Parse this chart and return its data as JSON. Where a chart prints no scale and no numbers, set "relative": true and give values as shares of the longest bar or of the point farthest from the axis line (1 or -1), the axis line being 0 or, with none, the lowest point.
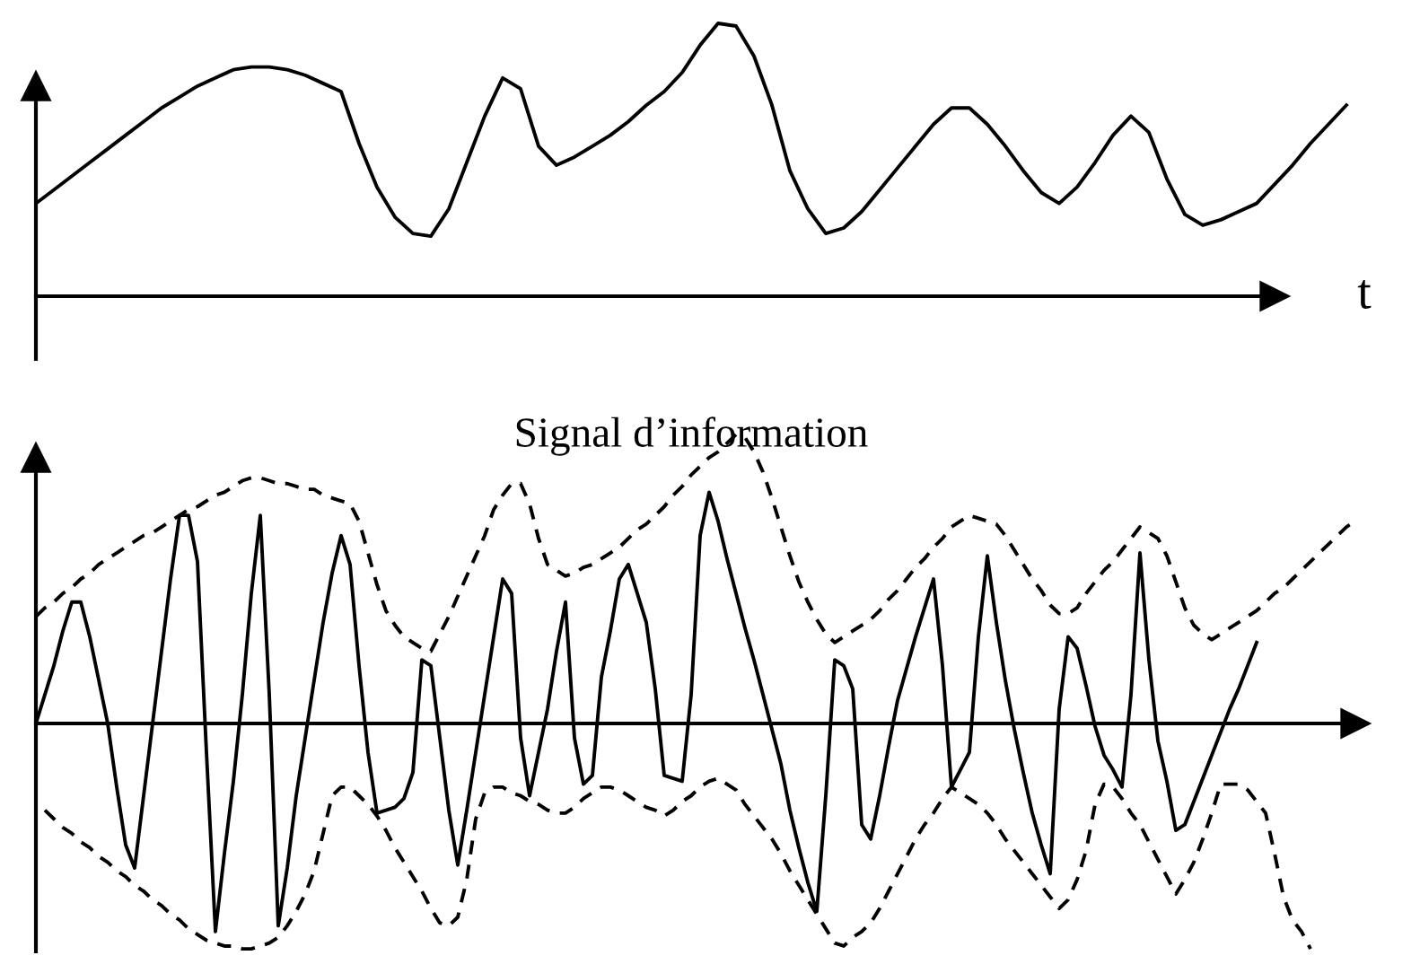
{
  "chart_data": [
    {
      "type": "line",
      "relative": true,
      "xlabel": "t",
      "annotations": [
        "Signal d’information"
      ],
      "marker": "none",
      "line_style": "solid",
      "categories": [
        null,
        null,
        null,
        null,
        null,
        null,
        null,
        null,
        null,
        null,
        null,
        null,
        null,
        null,
        null,
        null,
        null,
        null,
        null,
        null,
        null,
        null,
        null,
        null,
        null,
        null,
        null,
        null,
        null,
        null,
        null,
        null,
        null,
        null,
        null,
        null,
        null,
        null,
        null,
        null,
        null,
        null,
        null,
        null,
        null,
        null,
        null,
        null,
        null,
        null,
        null,
        null,
        null,
        null,
        null,
        null,
        null,
        null,
        null,
        null,
        null,
        null,
        null,
        null,
        null,
        null,
        null,
        null,
        null,
        null,
        null,
        null,
        null,
        null
      ],
      "series": [
        {
          "color": "#000000",
          "values": [
            0.34,
            0.39,
            0.44,
            0.49,
            0.54,
            0.59,
            0.64,
            0.69,
            0.73,
            0.77,
            0.8,
            0.83,
            0.84,
            0.84,
            0.83,
            0.81,
            0.78,
            0.75,
            0.56,
            0.4,
            0.29,
            0.23,
            0.22,
            0.32,
            0.49,
            0.66,
            0.8,
            0.76,
            0.55,
            0.48,
            0.51,
            0.55,
            0.59,
            0.64,
            0.7,
            0.75,
            0.82,
            0.92,
            1.0,
            0.99,
            0.88,
            0.7,
            0.46,
            0.32,
            0.23,
            0.25,
            0.31,
            0.39,
            0.47,
            0.55,
            0.63,
            0.69,
            0.69,
            0.63,
            0.55,
            0.46,
            0.38,
            0.34,
            0.4,
            0.49,
            0.59,
            0.66,
            0.6,
            0.43,
            0.3,
            0.26,
            0.28,
            0.31,
            0.34,
            0.41,
            0.48,
            0.56,
            0.63,
            0.7
          ]
        }
      ]
    },
    {
      "type": "line",
      "relative": true,
      "marker": "none",
      "categories": [
        null,
        null,
        null,
        null,
        null,
        null,
        null,
        null,
        null,
        null,
        null,
        null,
        null,
        null,
        null,
        null,
        null,
        null,
        null,
        null,
        null,
        null,
        null,
        null,
        null,
        null,
        null,
        null,
        null,
        null,
        null,
        null,
        null,
        null,
        null,
        null,
        null,
        null,
        null,
        null,
        null,
        null,
        null,
        null,
        null,
        null,
        null,
        null,
        null,
        null,
        null,
        null,
        null,
        null,
        null,
        null,
        null,
        null,
        null,
        null,
        null,
        null,
        null,
        null,
        null,
        null,
        null,
        null,
        null,
        null,
        null,
        null,
        null,
        null,
        null,
        null,
        null,
        null,
        null,
        null,
        null,
        null,
        null,
        null,
        null,
        null,
        null,
        null,
        null,
        null,
        null,
        null,
        null,
        null,
        null,
        null,
        null,
        null,
        null,
        null,
        null,
        null,
        null,
        null,
        null,
        null,
        null,
        null,
        null,
        null,
        null,
        null,
        null,
        null,
        null,
        null,
        null,
        null,
        null,
        null,
        null,
        null,
        null,
        null,
        null,
        null,
        null,
        null,
        null,
        null,
        null,
        null,
        null,
        null,
        null,
        null,
        null,
        null,
        null,
        null,
        null,
        null,
        null,
        null,
        null,
        null,
        null,
        null,
        null
      ],
      "series": [
        {
          "color": "#000000",
          "line_style": "solid",
          "values": [
            0,
            0.1,
            0.2,
            0.32,
            0.42,
            0.42,
            0.3,
            0.15,
            0.0,
            -0.22,
            -0.42,
            -0.5,
            -0.25,
            0.0,
            0.25,
            0.5,
            0.72,
            0.72,
            0.56,
            -0.1,
            -0.72,
            -0.45,
            -0.2,
            0.1,
            0.45,
            0.72,
            0.1,
            -0.7,
            -0.5,
            -0.25,
            -0.05,
            0.15,
            0.35,
            0.52,
            0.65,
            0.55,
            0.2,
            -0.1,
            -0.31,
            -0.3,
            -0.29,
            -0.26,
            -0.17,
            0.22,
            0.2,
            -0.05,
            -0.3,
            -0.49,
            -0.3,
            -0.1,
            0.1,
            0.3,
            0.5,
            0.45,
            -0.05,
            -0.25,
            -0.1,
            0.05,
            0.25,
            0.42,
            -0.05,
            -0.21,
            -0.18,
            0.16,
            0.32,
            0.5,
            0.55,
            0.45,
            0.35,
            0.12,
            -0.18,
            -0.19,
            -0.2,
            0.1,
            0.65,
            0.8,
            0.7,
            0.57,
            0.45,
            0.33,
            0.22,
            0.1,
            -0.02,
            -0.14,
            -0.3,
            -0.43,
            -0.55,
            -0.65,
            -0.25,
            0.22,
            0.2,
            0.12,
            -0.35,
            -0.4,
            -0.25,
            -0.08,
            0.08,
            0.19,
            0.3,
            0.4,
            0.5,
            0.2,
            -0.22,
            -0.16,
            -0.1,
            0.3,
            0.58,
            0.35,
            0.15,
            -0.02,
            -0.17,
            -0.31,
            -0.42,
            -0.52,
            0.05,
            0.3,
            0.26,
            0.13,
            -0.01,
            -0.11,
            -0.16,
            -0.22,
            0.1,
            0.59,
            0.22,
            -0.06,
            -0.2,
            -0.37,
            -0.35,
            -0.27,
            -0.19,
            -0.11,
            -0.03,
            0.05,
            0.12,
            0.2,
            0.28,
            null,
            null,
            null,
            null,
            null,
            null,
            null,
            null,
            null,
            null,
            null,
            null
          ]
        },
        {
          "color": "#000000",
          "line_style": "dashed",
          "values": [
            0.37,
            0.4,
            0.42,
            0.45,
            0.47,
            0.5,
            0.52,
            0.55,
            0.57,
            0.59,
            0.61,
            0.63,
            0.65,
            0.66,
            0.68,
            0.7,
            0.72,
            0.74,
            0.75,
            0.77,
            0.79,
            0.8,
            0.82,
            0.84,
            0.85,
            0.85,
            0.84,
            0.83,
            0.83,
            0.82,
            0.81,
            0.81,
            0.79,
            0.78,
            0.77,
            0.76,
            0.7,
            0.59,
            0.48,
            0.39,
            0.34,
            0.3,
            0.28,
            0.26,
            0.25,
            0.31,
            0.37,
            0.44,
            0.51,
            0.58,
            0.65,
            0.74,
            0.79,
            0.83,
            0.83,
            0.76,
            0.64,
            0.55,
            0.53,
            0.51,
            0.52,
            0.54,
            0.55,
            0.57,
            0.59,
            0.61,
            0.64,
            0.67,
            0.69,
            0.72,
            0.75,
            0.79,
            0.82,
            0.86,
            0.89,
            0.92,
            0.94,
            0.97,
            1.0,
            0.99,
            0.94,
            0.87,
            0.78,
            0.68,
            0.58,
            0.49,
            0.42,
            0.36,
            0.31,
            0.28,
            0.3,
            0.32,
            0.34,
            0.36,
            0.39,
            0.43,
            0.46,
            0.5,
            0.54,
            0.57,
            0.61,
            0.64,
            0.68,
            0.7,
            0.72,
            0.71,
            0.7,
            0.69,
            0.65,
            0.6,
            0.55,
            0.5,
            0.46,
            0.41,
            0.38,
            0.38,
            0.4,
            0.45,
            0.49,
            0.53,
            0.56,
            0.6,
            0.64,
            0.68,
            0.66,
            0.64,
            0.58,
            0.49,
            0.4,
            0.34,
            0.31,
            0.29,
            0.31,
            0.33,
            0.35,
            0.37,
            0.39,
            0.42,
            0.45,
            0.47,
            0.5,
            0.53,
            0.56,
            0.59,
            0.62,
            0.65,
            0.68,
            0.7,
            null
          ]
        },
        {
          "color": "#000000",
          "line_style": "dashed",
          "values": [
            null,
            -0.3,
            -0.33,
            -0.36,
            -0.38,
            -0.41,
            -0.43,
            -0.46,
            -0.48,
            -0.51,
            -0.53,
            -0.56,
            -0.58,
            -0.61,
            -0.63,
            -0.66,
            -0.68,
            -0.71,
            -0.73,
            -0.75,
            -0.76,
            -0.77,
            -0.77,
            -0.78,
            -0.78,
            -0.77,
            -0.76,
            -0.74,
            -0.7,
            -0.65,
            -0.59,
            -0.51,
            -0.38,
            -0.25,
            -0.22,
            -0.22,
            -0.25,
            -0.28,
            -0.32,
            -0.37,
            -0.43,
            -0.48,
            -0.53,
            -0.58,
            -0.64,
            -0.69,
            -0.7,
            -0.67,
            -0.54,
            -0.33,
            -0.24,
            -0.22,
            -0.22,
            -0.24,
            -0.25,
            -0.27,
            -0.28,
            -0.3,
            -0.31,
            -0.31,
            -0.29,
            -0.26,
            -0.24,
            -0.22,
            -0.22,
            -0.23,
            -0.25,
            -0.27,
            -0.29,
            -0.3,
            -0.32,
            -0.3,
            -0.27,
            -0.25,
            -0.22,
            -0.2,
            -0.19,
            -0.21,
            -0.23,
            -0.28,
            -0.32,
            -0.36,
            -0.4,
            -0.45,
            -0.51,
            -0.56,
            -0.61,
            -0.66,
            -0.71,
            -0.76,
            -0.77,
            -0.74,
            -0.72,
            -0.69,
            -0.64,
            -0.58,
            -0.52,
            -0.46,
            -0.4,
            -0.35,
            -0.31,
            -0.26,
            -0.22,
            -0.24,
            -0.26,
            -0.28,
            -0.31,
            -0.35,
            -0.4,
            -0.44,
            -0.48,
            -0.52,
            -0.56,
            -0.6,
            -0.64,
            -0.61,
            -0.54,
            -0.44,
            -0.28,
            -0.21,
            -0.22,
            -0.26,
            -0.31,
            -0.35,
            -0.41,
            -0.47,
            -0.53,
            -0.59,
            -0.54,
            -0.48,
            -0.4,
            -0.31,
            -0.21,
            -0.21,
            -0.21,
            -0.23,
            -0.27,
            -0.31,
            -0.45,
            -0.6,
            -0.68,
            -0.72,
            -0.78,
            null,
            null,
            null,
            null,
            null,
            null
          ]
        }
      ]
    }
  ]
}
